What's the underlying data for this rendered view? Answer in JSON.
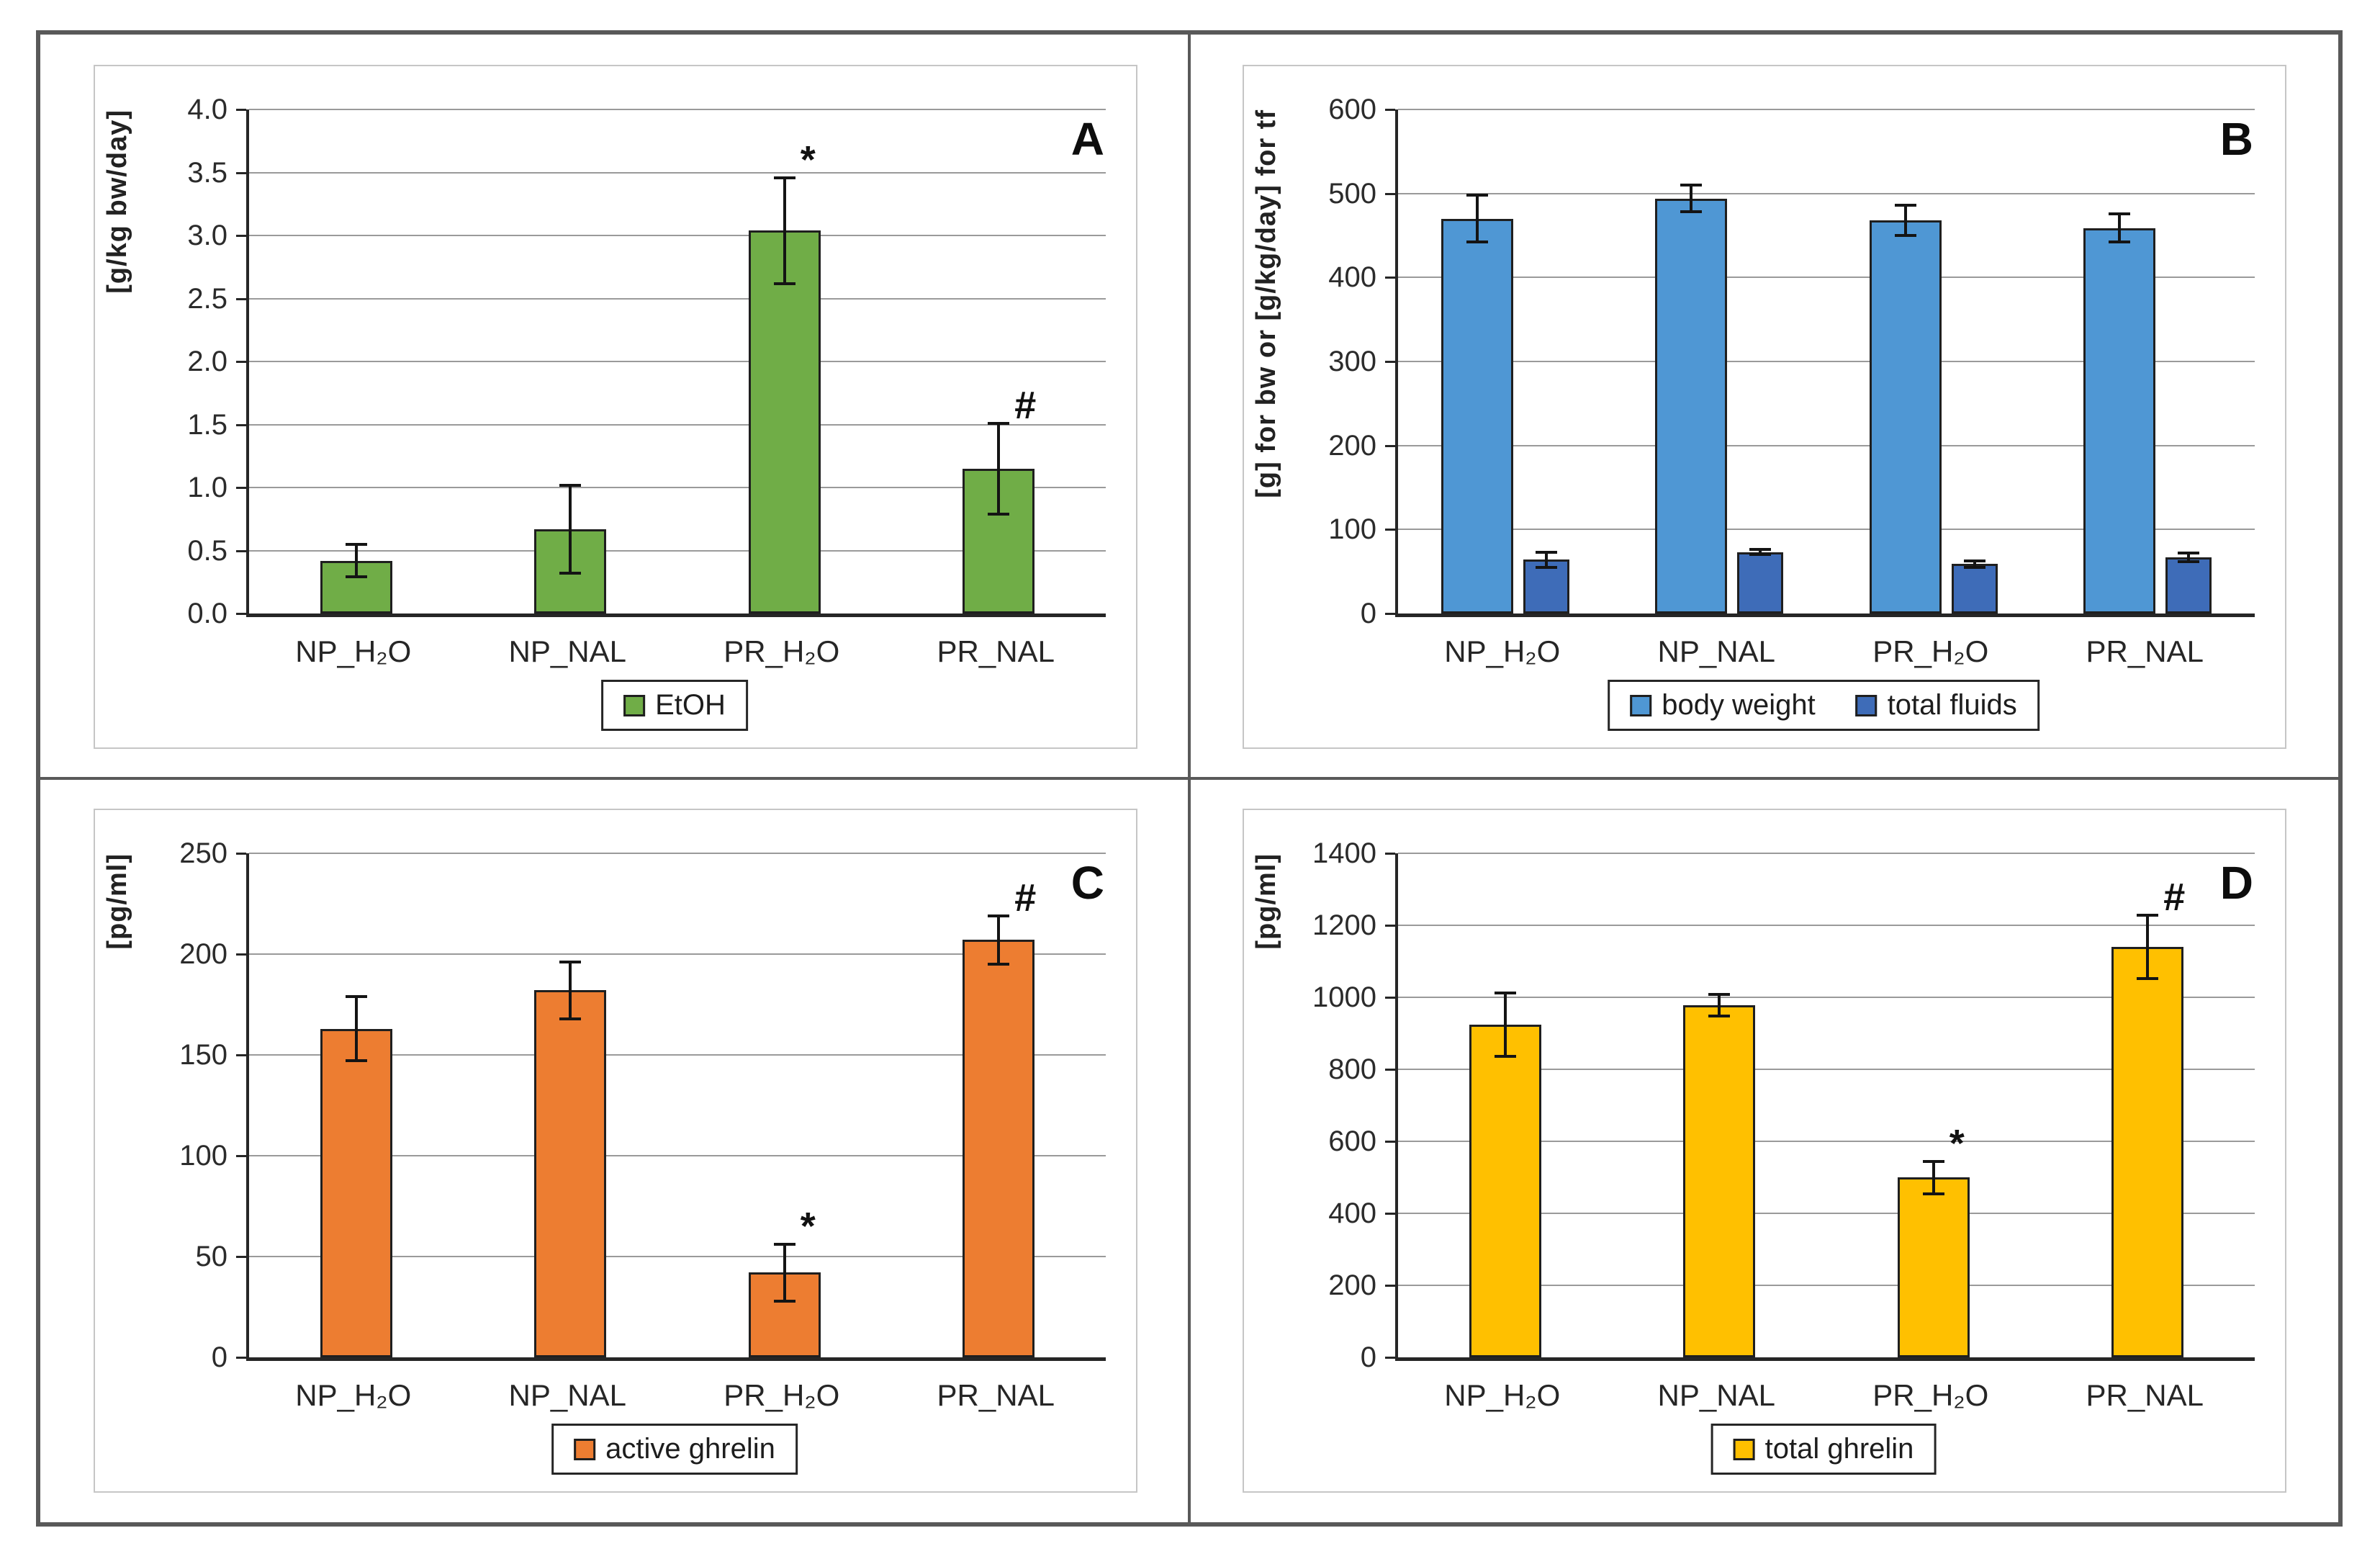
{
  "chart_data": [
    {
      "type": "bar",
      "panel_letter": "A",
      "ylabel": "[g/kg bw/day]",
      "ylim": [
        0,
        4.0
      ],
      "y_ticks": [
        "0.0",
        "0.5",
        "1.0",
        "1.5",
        "2.0",
        "2.5",
        "3.0",
        "3.5",
        "4.0"
      ],
      "grid": true,
      "legend_position": "bottom",
      "categories": [
        "NP_H₂O",
        "NP_NAL",
        "PR_H₂O",
        "PR_NAL"
      ],
      "series": [
        {
          "name": "EtOH",
          "fill": "#70AD47",
          "values": [
            0.42,
            0.67,
            3.04,
            1.15
          ],
          "errors": [
            0.13,
            0.35,
            0.42,
            0.36
          ]
        }
      ],
      "sig_markers": [
        "",
        "",
        "*",
        "#"
      ]
    },
    {
      "type": "bar",
      "panel_letter": "B",
      "ylabel": "[g] for bw or [g/kg/day] for tf",
      "ylim": [
        0,
        600
      ],
      "y_ticks": [
        "0",
        "100",
        "200",
        "300",
        "400",
        "500",
        "600"
      ],
      "grid": true,
      "legend_position": "bottom",
      "categories": [
        "NP_H₂O",
        "NP_NAL",
        "PR_H₂O",
        "PR_NAL"
      ],
      "series": [
        {
          "name": "body weight",
          "fill": "#4F97D4",
          "values": [
            470,
            494,
            468,
            459
          ],
          "errors": [
            28,
            16,
            18,
            17
          ]
        },
        {
          "name": "total fluids",
          "fill": "#3E6CB8",
          "values": [
            64,
            73,
            59,
            67
          ],
          "errors": [
            9,
            3,
            4,
            5
          ]
        }
      ],
      "sig_markers": [
        "",
        "",
        "",
        ""
      ]
    },
    {
      "type": "bar",
      "panel_letter": "C",
      "ylabel": "[pg/ml]",
      "ylim": [
        0,
        250
      ],
      "y_ticks": [
        "0",
        "50",
        "100",
        "150",
        "200",
        "250"
      ],
      "grid": true,
      "legend_position": "bottom",
      "categories": [
        "NP_H₂O",
        "NP_NAL",
        "PR_H₂O",
        "PR_NAL"
      ],
      "series": [
        {
          "name": "active ghrelin",
          "fill": "#ED7D31",
          "values": [
            163,
            182,
            42,
            207
          ],
          "errors": [
            16,
            14,
            14,
            12
          ]
        }
      ],
      "sig_markers": [
        "",
        "",
        "*",
        "#"
      ]
    },
    {
      "type": "bar",
      "panel_letter": "D",
      "ylabel": "[pg/ml]",
      "ylim": [
        0,
        1400
      ],
      "y_ticks": [
        "0",
        "200",
        "400",
        "600",
        "800",
        "1000",
        "1200",
        "1400"
      ],
      "grid": true,
      "legend_position": "bottom",
      "categories": [
        "NP_H₂O",
        "NP_NAL",
        "PR_H₂O",
        "PR_NAL"
      ],
      "series": [
        {
          "name": "total ghrelin",
          "fill": "#FFC000",
          "values": [
            925,
            978,
            500,
            1140
          ],
          "errors": [
            88,
            30,
            45,
            88
          ]
        }
      ],
      "sig_markers": [
        "",
        "",
        "*",
        "#"
      ]
    }
  ],
  "figure": {
    "border_color": "#595959",
    "panel_border_color": "#c6c6c6",
    "gridline_color": "#9a9a9a"
  }
}
